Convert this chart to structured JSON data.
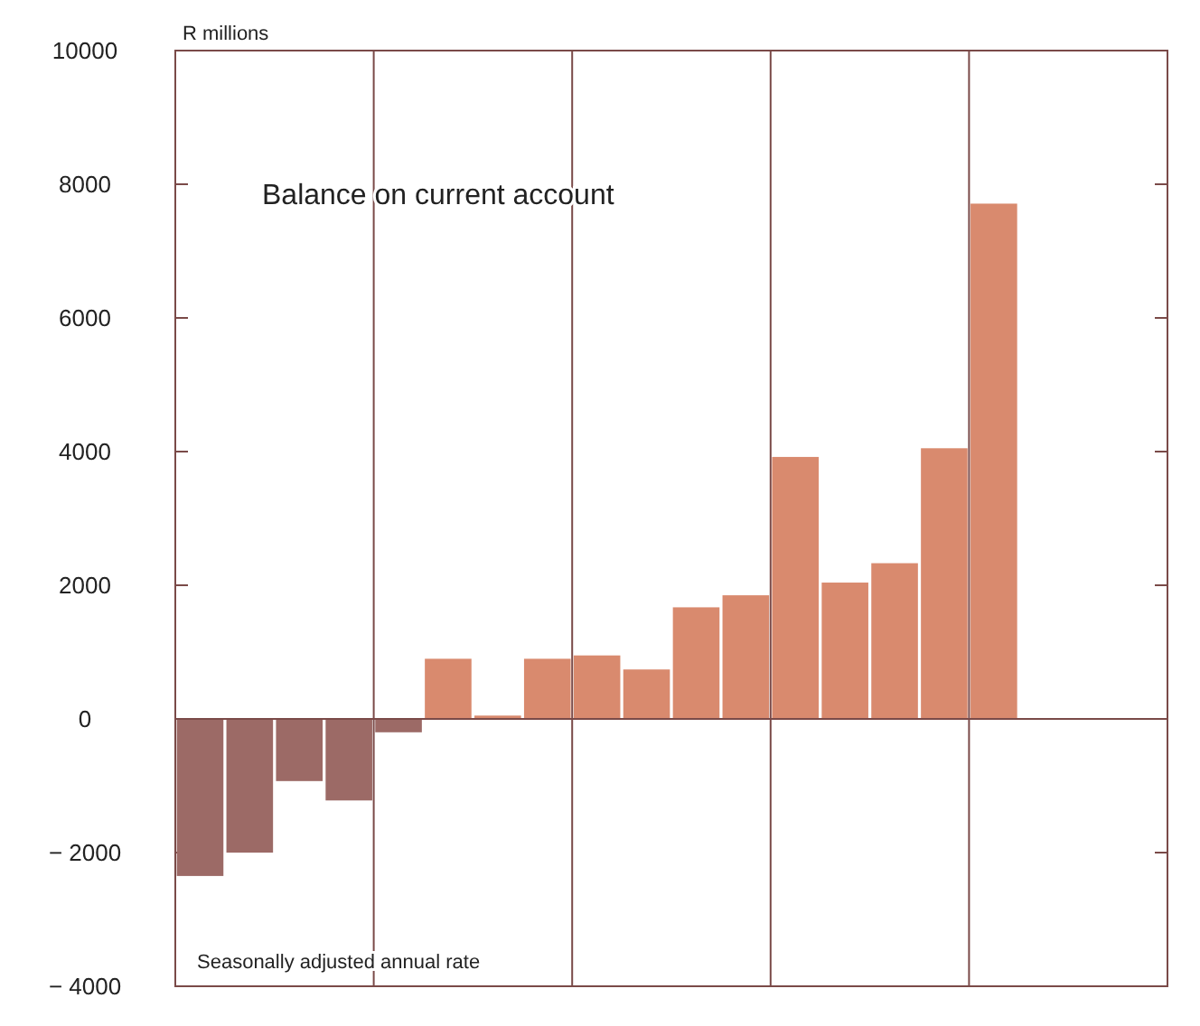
{
  "chart_data": {
    "type": "bar",
    "title": "Balance on current account",
    "ylabel": "R millions",
    "annotations": [
      "Seasonally adjusted annual rate"
    ],
    "categories": [
      null,
      null,
      null,
      null,
      null,
      null,
      null,
      null,
      null,
      null,
      null,
      null,
      null,
      null,
      null,
      null,
      null,
      null,
      null,
      null
    ],
    "values": [
      -2350,
      -2000,
      -930,
      -1220,
      -200,
      900,
      50,
      900,
      950,
      740,
      1670,
      1850,
      3920,
      2040,
      2330,
      4050,
      7710,
      null,
      null,
      null
    ],
    "ref_lines": [
      {
        "axis": "y",
        "value": 0
      }
    ],
    "colors": [
      "#9c6a66",
      "#9c6a66",
      "#9c6a66",
      "#9c6a66",
      "#9c6a66",
      "#d98a6e",
      "#d98a6e",
      "#d98a6e",
      "#d98a6e",
      "#d98a6e",
      "#d98a6e",
      "#d98a6e",
      "#d98a6e",
      "#d98a6e",
      "#d98a6e",
      "#d98a6e",
      "#d98a6e",
      null,
      null,
      null
    ],
    "ylim": [
      -4000,
      10000
    ],
    "yticks": [
      {
        "value": -4000,
        "label": "− 4000"
      },
      {
        "value": -2000,
        "label": "− 2000"
      },
      0,
      2000,
      4000,
      6000,
      8000,
      10000
    ],
    "grid": "x"
  }
}
